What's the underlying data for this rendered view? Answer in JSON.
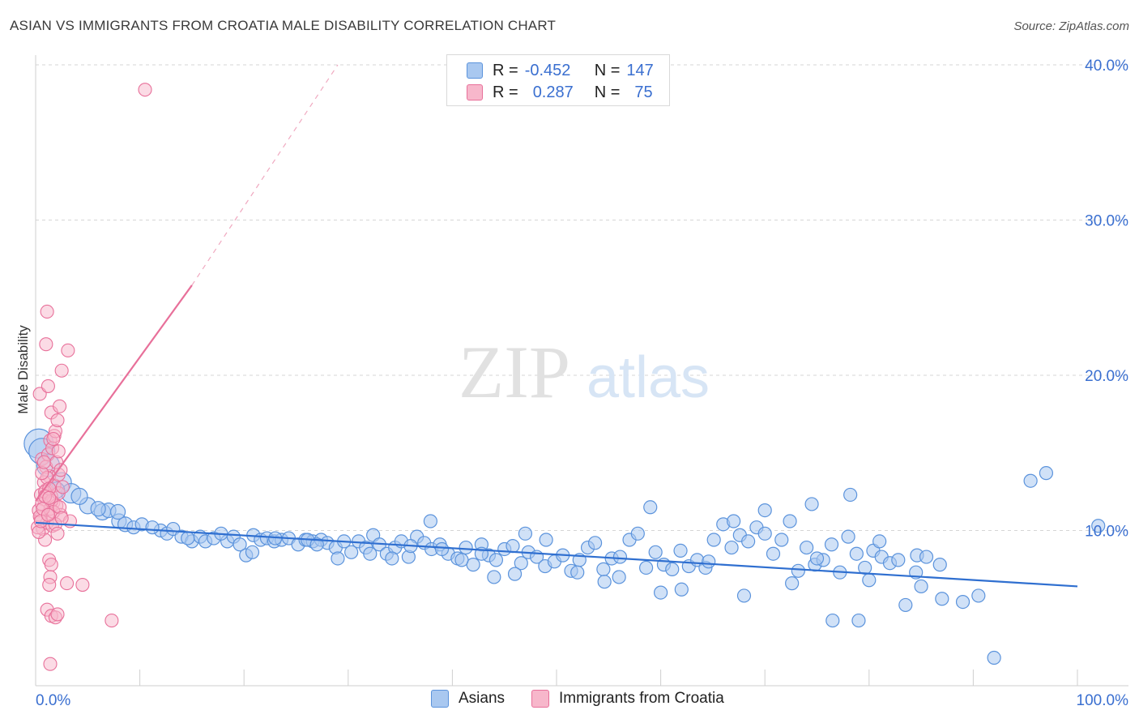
{
  "title": "ASIAN VS IMMIGRANTS FROM CROATIA MALE DISABILITY CORRELATION CHART",
  "source": "Source: ZipAtlas.com",
  "watermark": {
    "zip": "ZIP",
    "atlas": "atlas"
  },
  "legend": {
    "rows": [
      {
        "r_label": "R =",
        "r_value": "-0.452",
        "n_label": "N =",
        "n_value": "147",
        "color": "#a9c8f0"
      },
      {
        "r_label": "R =",
        "r_value": "0.287",
        "n_label": "N =",
        "n_value": "75",
        "color": "#f7b7cb"
      }
    ]
  },
  "bottom_legend": [
    {
      "label": "Asians",
      "color": "#a9c8f0"
    },
    {
      "label": "Immigrants from Croatia",
      "color": "#f7b7cb"
    }
  ],
  "chart_data": {
    "type": "scatter",
    "xlabel": "",
    "ylabel": "Male Disability",
    "xlim": [
      0,
      100
    ],
    "ylim": [
      0,
      40
    ],
    "x_tick_labels": [
      "0.0%",
      "100.0%"
    ],
    "y_tick_labels": [
      "10.0%",
      "20.0%",
      "30.0%",
      "40.0%"
    ],
    "y_ticks": [
      10,
      20,
      30,
      40
    ],
    "grid": true,
    "legend_position": "top-center",
    "series": [
      {
        "name": "Asians",
        "color": "#5b93dc",
        "fill": "#a9c8f0",
        "trend": {
          "x": [
            0,
            100
          ],
          "y": [
            10.5,
            6.4
          ]
        },
        "points": [
          [
            0.3,
            15.6,
            18
          ],
          [
            0.6,
            15.1,
            16
          ],
          [
            1.2,
            14.2,
            14
          ],
          [
            2.5,
            13.1,
            12
          ],
          [
            3.4,
            12.4,
            12
          ],
          [
            5.0,
            11.6,
            10
          ],
          [
            6.4,
            11.2,
            10
          ],
          [
            8.0,
            10.6,
            9
          ],
          [
            8.6,
            10.4,
            9
          ],
          [
            7.0,
            11.3,
            9
          ],
          [
            9.4,
            10.2,
            8
          ],
          [
            10.2,
            10.4,
            8
          ],
          [
            12.0,
            10.0,
            8
          ],
          [
            12.6,
            9.8,
            8
          ],
          [
            13.2,
            10.1,
            8
          ],
          [
            14.0,
            9.6,
            8
          ],
          [
            15.0,
            9.3,
            8
          ],
          [
            15.8,
            9.6,
            8
          ],
          [
            16.3,
            9.3,
            8
          ],
          [
            17.1,
            9.5,
            8
          ],
          [
            18.4,
            9.3,
            8
          ],
          [
            19.0,
            9.6,
            8
          ],
          [
            19.6,
            9.1,
            8
          ],
          [
            20.9,
            9.7,
            8
          ],
          [
            21.6,
            9.4,
            8
          ],
          [
            22.2,
            9.5,
            8
          ],
          [
            22.9,
            9.3,
            8
          ],
          [
            23.6,
            9.4,
            8
          ],
          [
            24.3,
            9.5,
            8
          ],
          [
            25.2,
            9.1,
            8
          ],
          [
            25.9,
            9.4,
            8
          ],
          [
            26.6,
            9.3,
            8
          ],
          [
            27.4,
            9.4,
            8
          ],
          [
            28.0,
            9.2,
            8
          ],
          [
            28.8,
            8.9,
            8
          ],
          [
            29.6,
            9.3,
            8
          ],
          [
            30.3,
            8.6,
            8
          ],
          [
            31.0,
            9.3,
            8
          ],
          [
            31.7,
            8.9,
            8
          ],
          [
            32.4,
            9.7,
            8
          ],
          [
            33.0,
            9.1,
            8
          ],
          [
            33.7,
            8.5,
            8
          ],
          [
            34.5,
            8.9,
            8
          ],
          [
            35.1,
            9.3,
            8
          ],
          [
            35.8,
            8.3,
            8
          ],
          [
            36.6,
            9.6,
            8
          ],
          [
            37.3,
            9.2,
            8
          ],
          [
            38.0,
            8.8,
            8
          ],
          [
            38.8,
            9.1,
            8
          ],
          [
            39.6,
            8.5,
            8
          ],
          [
            40.5,
            8.2,
            8
          ],
          [
            41.3,
            8.9,
            8
          ],
          [
            42.0,
            7.8,
            8
          ],
          [
            42.8,
            9.1,
            8
          ],
          [
            43.5,
            8.4,
            8
          ],
          [
            44.2,
            8.1,
            8
          ],
          [
            45.0,
            8.8,
            8
          ],
          [
            45.8,
            9.0,
            8
          ],
          [
            46.6,
            7.9,
            8
          ],
          [
            47.3,
            8.6,
            8
          ],
          [
            48.1,
            8.3,
            8
          ],
          [
            48.9,
            7.7,
            8
          ],
          [
            49.8,
            8.0,
            8
          ],
          [
            50.6,
            8.4,
            8
          ],
          [
            51.4,
            7.4,
            8
          ],
          [
            52.2,
            8.1,
            8
          ],
          [
            53.0,
            8.9,
            8
          ],
          [
            53.7,
            9.2,
            8
          ],
          [
            54.5,
            7.5,
            8
          ],
          [
            55.3,
            8.2,
            8
          ],
          [
            56.1,
            8.3,
            8
          ],
          [
            57.0,
            9.4,
            8
          ],
          [
            57.8,
            9.8,
            8
          ],
          [
            58.6,
            7.6,
            8
          ],
          [
            59.5,
            8.6,
            8
          ],
          [
            60.3,
            7.8,
            8
          ],
          [
            61.1,
            7.5,
            8
          ],
          [
            61.9,
            8.7,
            8
          ],
          [
            62.7,
            7.7,
            8
          ],
          [
            63.5,
            8.1,
            8
          ],
          [
            64.3,
            7.6,
            8
          ],
          [
            65.1,
            9.4,
            8
          ],
          [
            66.0,
            10.4,
            8
          ],
          [
            66.8,
            8.9,
            8
          ],
          [
            67.6,
            9.7,
            8
          ],
          [
            68.4,
            9.3,
            8
          ],
          [
            69.2,
            10.2,
            8
          ],
          [
            70.0,
            9.8,
            8
          ],
          [
            70.8,
            8.5,
            8
          ],
          [
            71.6,
            9.4,
            8
          ],
          [
            72.4,
            10.6,
            8
          ],
          [
            73.2,
            7.4,
            8
          ],
          [
            74.0,
            8.9,
            8
          ],
          [
            74.8,
            7.8,
            8
          ],
          [
            75.6,
            8.1,
            8
          ],
          [
            76.4,
            9.1,
            8
          ],
          [
            77.2,
            7.3,
            8
          ],
          [
            78.0,
            9.6,
            8
          ],
          [
            78.8,
            8.5,
            8
          ],
          [
            79.6,
            7.6,
            8
          ],
          [
            80.4,
            8.7,
            8
          ],
          [
            81.2,
            8.3,
            8
          ],
          [
            82.0,
            7.9,
            8
          ],
          [
            82.8,
            8.1,
            8
          ],
          [
            84.6,
            8.4,
            8
          ],
          [
            85.5,
            8.3,
            8
          ],
          [
            86.8,
            7.8,
            8
          ],
          [
            2.0,
            12.6,
            10
          ],
          [
            4.2,
            12.2,
            10
          ],
          [
            6.0,
            11.4,
            9
          ],
          [
            11.2,
            10.2,
            8
          ],
          [
            14.6,
            9.5,
            8
          ],
          [
            17.8,
            9.8,
            8
          ],
          [
            20.2,
            8.4,
            8
          ],
          [
            23.0,
            9.5,
            8
          ],
          [
            26.1,
            9.4,
            8
          ],
          [
            29.0,
            8.2,
            8
          ],
          [
            32.1,
            8.5,
            8
          ],
          [
            34.2,
            8.2,
            8
          ],
          [
            37.9,
            10.6,
            8
          ],
          [
            39.0,
            8.8,
            8
          ],
          [
            40.9,
            8.1,
            8
          ],
          [
            44.0,
            7.0,
            8
          ],
          [
            46.0,
            7.2,
            8
          ],
          [
            47.0,
            9.8,
            8
          ],
          [
            49.0,
            9.4,
            8
          ],
          [
            52.0,
            7.3,
            8
          ],
          [
            54.6,
            6.7,
            8
          ],
          [
            56.0,
            7.0,
            8
          ],
          [
            59.0,
            11.5,
            8
          ],
          [
            60.0,
            6.0,
            8
          ],
          [
            62.0,
            6.2,
            8
          ],
          [
            64.6,
            8.0,
            8
          ],
          [
            68.0,
            5.8,
            8
          ],
          [
            70.0,
            11.3,
            8
          ],
          [
            72.6,
            6.6,
            8
          ],
          [
            74.5,
            11.7,
            8
          ],
          [
            76.5,
            4.2,
            8
          ],
          [
            78.2,
            12.3,
            8
          ],
          [
            80.0,
            6.8,
            8
          ],
          [
            81.0,
            9.3,
            8
          ],
          [
            83.5,
            5.2,
            8
          ],
          [
            84.5,
            7.3,
            8
          ],
          [
            85.0,
            6.4,
            8
          ],
          [
            87.0,
            5.6,
            8
          ],
          [
            89.0,
            5.4,
            8
          ],
          [
            90.5,
            5.8,
            8
          ],
          [
            75.0,
            8.2,
            8
          ],
          [
            79.0,
            4.2,
            8
          ],
          [
            92.0,
            1.8,
            8
          ],
          [
            95.5,
            13.2,
            8
          ],
          [
            97.0,
            13.7,
            8
          ],
          [
            102.0,
            10.3,
            8
          ],
          [
            7.9,
            11.2,
            9
          ],
          [
            67.0,
            10.6,
            8
          ],
          [
            42.8,
            8.5,
            8
          ],
          [
            20.8,
            8.6,
            8
          ],
          [
            27.0,
            9.1,
            8
          ],
          [
            36.0,
            9.0,
            8
          ]
        ]
      },
      {
        "name": "Immigrants from Croatia",
        "color": "#e8709a",
        "fill": "#f7b7cb",
        "trend": {
          "x": [
            0,
            15
          ],
          "y": [
            11.9,
            25.8
          ],
          "dashed_to": {
            "x": 29,
            "y": 40
          }
        },
        "points": [
          [
            0.4,
            18.8
          ],
          [
            0.6,
            14.6
          ],
          [
            0.8,
            12.0
          ],
          [
            1.0,
            12.6
          ],
          [
            1.2,
            11.1
          ],
          [
            1.3,
            13.5
          ],
          [
            1.5,
            12.2
          ],
          [
            1.7,
            11.8
          ],
          [
            0.5,
            10.8
          ],
          [
            0.7,
            10.1
          ],
          [
            0.9,
            9.4
          ],
          [
            1.1,
            10.5
          ],
          [
            1.4,
            11.4
          ],
          [
            1.6,
            10.3
          ],
          [
            1.8,
            12.9
          ],
          [
            2.0,
            11.6
          ],
          [
            2.2,
            12.4
          ],
          [
            2.4,
            11.0
          ],
          [
            2.6,
            12.8
          ],
          [
            0.3,
            11.3
          ],
          [
            0.5,
            12.3
          ],
          [
            0.8,
            13.1
          ],
          [
            1.0,
            14.1
          ],
          [
            1.2,
            14.9
          ],
          [
            1.4,
            15.8
          ],
          [
            1.6,
            15.3
          ],
          [
            1.8,
            16.1
          ],
          [
            2.0,
            14.4
          ],
          [
            2.2,
            13.6
          ],
          [
            2.4,
            13.9
          ],
          [
            1.1,
            24.1
          ],
          [
            1.0,
            22.0
          ],
          [
            1.2,
            19.3
          ],
          [
            1.5,
            17.6
          ],
          [
            1.9,
            16.4
          ],
          [
            2.1,
            17.1
          ],
          [
            2.3,
            18.0
          ],
          [
            2.5,
            20.3
          ],
          [
            3.1,
            21.6
          ],
          [
            3.3,
            10.6
          ],
          [
            1.3,
            8.1
          ],
          [
            1.5,
            7.8
          ],
          [
            1.4,
            7.0
          ],
          [
            1.3,
            6.5
          ],
          [
            1.1,
            4.9
          ],
          [
            1.5,
            4.5
          ],
          [
            1.9,
            4.4
          ],
          [
            2.1,
            4.6
          ],
          [
            3.0,
            6.6
          ],
          [
            4.5,
            6.5
          ],
          [
            1.4,
            1.4
          ],
          [
            7.3,
            4.2
          ],
          [
            10.5,
            38.4
          ],
          [
            0.2,
            10.2
          ],
          [
            0.4,
            10.9
          ],
          [
            0.6,
            11.7
          ],
          [
            0.9,
            12.5
          ],
          [
            1.1,
            13.4
          ],
          [
            1.3,
            12.7
          ],
          [
            1.5,
            11.9
          ],
          [
            1.7,
            11.2
          ],
          [
            1.9,
            10.4
          ],
          [
            2.1,
            9.8
          ],
          [
            0.3,
            9.9
          ],
          [
            0.5,
            10.6
          ],
          [
            0.7,
            11.4
          ],
          [
            0.9,
            12.2
          ],
          [
            2.3,
            11.5
          ],
          [
            2.5,
            10.8
          ],
          [
            1.2,
            11.0
          ],
          [
            0.6,
            13.7
          ],
          [
            0.8,
            14.4
          ],
          [
            1.7,
            15.9
          ],
          [
            2.2,
            15.1
          ],
          [
            1.3,
            12.1
          ]
        ]
      }
    ]
  }
}
